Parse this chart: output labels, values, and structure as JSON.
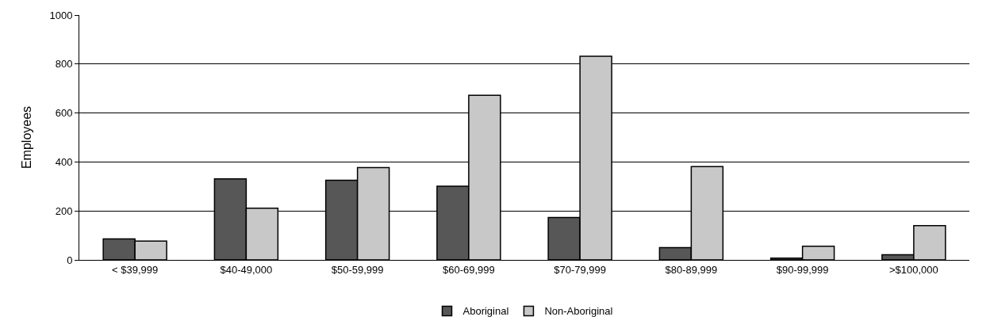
{
  "chart_data": {
    "type": "bar",
    "ylabel": "Employees",
    "categories": [
      "< $39,999",
      "$40-49,000",
      "$50-59,999",
      "$60-69,999",
      "$70-79,999",
      "$80-89,999",
      "$90-99,999",
      ">$100,000"
    ],
    "series": [
      {
        "name": "Aboriginal",
        "color": "#575757",
        "values": [
          86,
          331,
          325,
          301,
          173,
          50,
          7,
          21
        ]
      },
      {
        "name": "Non-Aboriginal",
        "color": "#c8c8c8",
        "values": [
          77,
          211,
          377,
          672,
          832,
          381,
          56,
          140
        ]
      }
    ],
    "ylim": [
      0,
      1000
    ],
    "yticks": [
      0,
      200,
      400,
      600,
      800,
      1000
    ],
    "grid": "y",
    "legend": "bottom"
  }
}
